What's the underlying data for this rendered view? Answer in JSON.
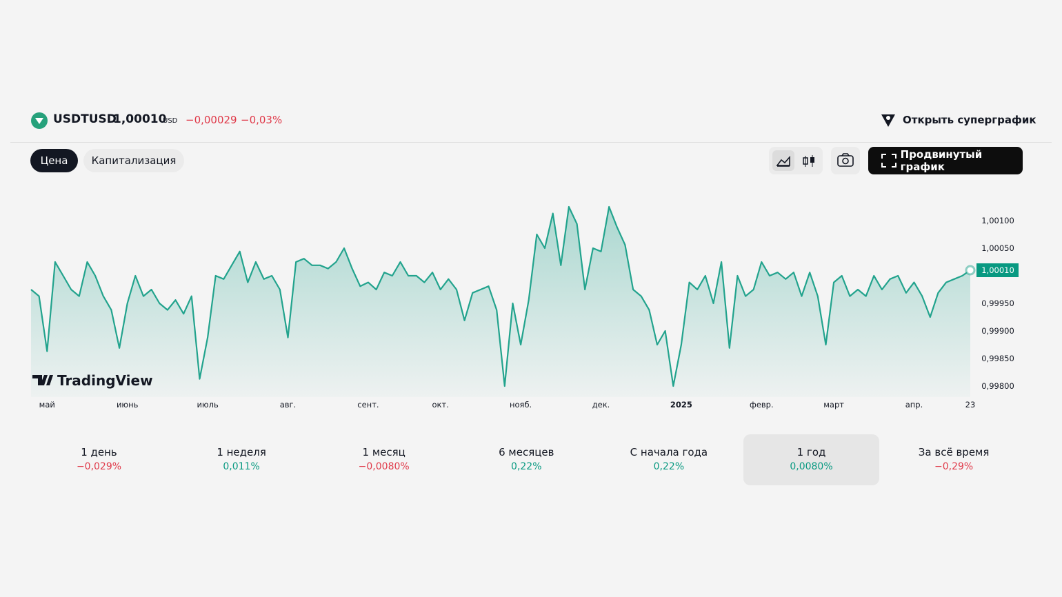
{
  "header": {
    "symbol": "USDTUSD",
    "price": "1,00010",
    "currency": "USD",
    "change": "−0,00029",
    "change_percent": "−0,03%",
    "super_chart_button": "Открыть суперграфик"
  },
  "tabs": [
    "Цена",
    "Капитализация"
  ],
  "advanced_button": "Продвинутый график",
  "chart_data": {
    "type": "area",
    "watermark": "TradingView",
    "color": "#22a38d",
    "categories": [
      null,
      null,
      "май",
      null,
      null,
      null,
      null,
      null,
      null,
      null,
      null,
      null,
      "июнь",
      null,
      null,
      null,
      null,
      null,
      null,
      null,
      null,
      null,
      "июль",
      null,
      null,
      null,
      null,
      null,
      null,
      null,
      null,
      null,
      "авг.",
      null,
      null,
      null,
      null,
      null,
      null,
      null,
      null,
      null,
      "сент.",
      null,
      null,
      null,
      null,
      null,
      null,
      null,
      null,
      "окт.",
      null,
      null,
      null,
      null,
      null,
      null,
      null,
      null,
      null,
      "нояб.",
      null,
      null,
      null,
      null,
      null,
      null,
      null,
      null,
      null,
      "дек.",
      null,
      null,
      null,
      null,
      null,
      null,
      null,
      null,
      null,
      "2025",
      null,
      null,
      null,
      null,
      null,
      null,
      null,
      null,
      null,
      "февр.",
      null,
      null,
      null,
      null,
      null,
      null,
      null,
      null,
      "март",
      null,
      null,
      null,
      null,
      null,
      null,
      null,
      null,
      null,
      "апр.",
      null,
      null,
      null,
      null,
      null,
      null,
      "23"
    ],
    "values": [
      0.99975,
      0.99963,
      0.99863,
      1.00025,
      1.0,
      0.99975,
      0.99963,
      1.00025,
      1.0,
      0.99963,
      0.99938,
      0.99869,
      0.9995,
      1.0,
      0.99963,
      0.99975,
      0.9995,
      0.99938,
      0.99956,
      0.99931,
      0.99963,
      0.99813,
      0.99888,
      1.0,
      0.99994,
      1.00019,
      1.00044,
      0.99988,
      1.00025,
      0.99994,
      1.0,
      0.99975,
      0.99888,
      1.00025,
      1.00031,
      1.00019,
      1.00019,
      1.00013,
      1.00025,
      1.0005,
      1.00013,
      0.99981,
      0.99988,
      0.99975,
      1.00006,
      1.0,
      1.00025,
      1.0,
      1.0,
      0.99988,
      1.00006,
      0.99975,
      0.99994,
      0.99975,
      0.99919,
      0.99969,
      0.99975,
      0.99981,
      0.99938,
      0.998,
      0.9995,
      0.99875,
      0.99956,
      1.00075,
      1.0005,
      1.00113,
      1.00019,
      1.00125,
      1.00094,
      0.99975,
      1.0005,
      1.00044,
      1.00125,
      1.00088,
      1.00056,
      0.99975,
      0.99963,
      0.99938,
      0.99875,
      0.999,
      0.998,
      0.99875,
      0.99988,
      0.99975,
      1.0,
      0.9995,
      1.00025,
      0.99869,
      1.0,
      0.99963,
      0.99975,
      1.00025,
      1.0,
      1.00006,
      0.99994,
      1.00006,
      0.99963,
      1.00006,
      0.99963,
      0.99875,
      0.99988,
      1.0,
      0.99963,
      0.99975,
      0.99963,
      1.0,
      0.99975,
      0.99994,
      1.0,
      0.99969,
      0.99988,
      0.99963,
      0.99925,
      0.99969,
      0.99988,
      0.99994,
      1.0,
      1.0001
    ],
    "ylim": [
      0.9978,
      1.0015
    ],
    "yticks": [
      {
        "value": 0.998,
        "label": "0,99800"
      },
      {
        "value": 0.9985,
        "label": "0,99850"
      },
      {
        "value": 0.999,
        "label": "0,99900"
      },
      {
        "value": 0.9995,
        "label": "0,99950"
      },
      {
        "value": 1.0005,
        "label": "1,00050"
      },
      {
        "value": 1.001,
        "label": "1,00100"
      }
    ],
    "current_price": {
      "value": 1.0001,
      "label": "1,00010",
      "color": "#089981"
    }
  },
  "periods": [
    {
      "label": "1 день",
      "change": "−0,029%",
      "color": "#e03a4a"
    },
    {
      "label": "1 неделя",
      "change": "0,011%",
      "color": "#089981"
    },
    {
      "label": "1 месяц",
      "change": "−0,0080%",
      "color": "#e03a4a"
    },
    {
      "label": "6 месяцев",
      "change": "0,22%",
      "color": "#089981"
    },
    {
      "label": "С начала года",
      "change": "0,22%",
      "color": "#089981"
    },
    {
      "label": "1 год",
      "change": "0,0080%",
      "color": "#089981",
      "selected": true
    },
    {
      "label": "За всё время",
      "change": "−0,29%",
      "color": "#e03a4a"
    }
  ]
}
